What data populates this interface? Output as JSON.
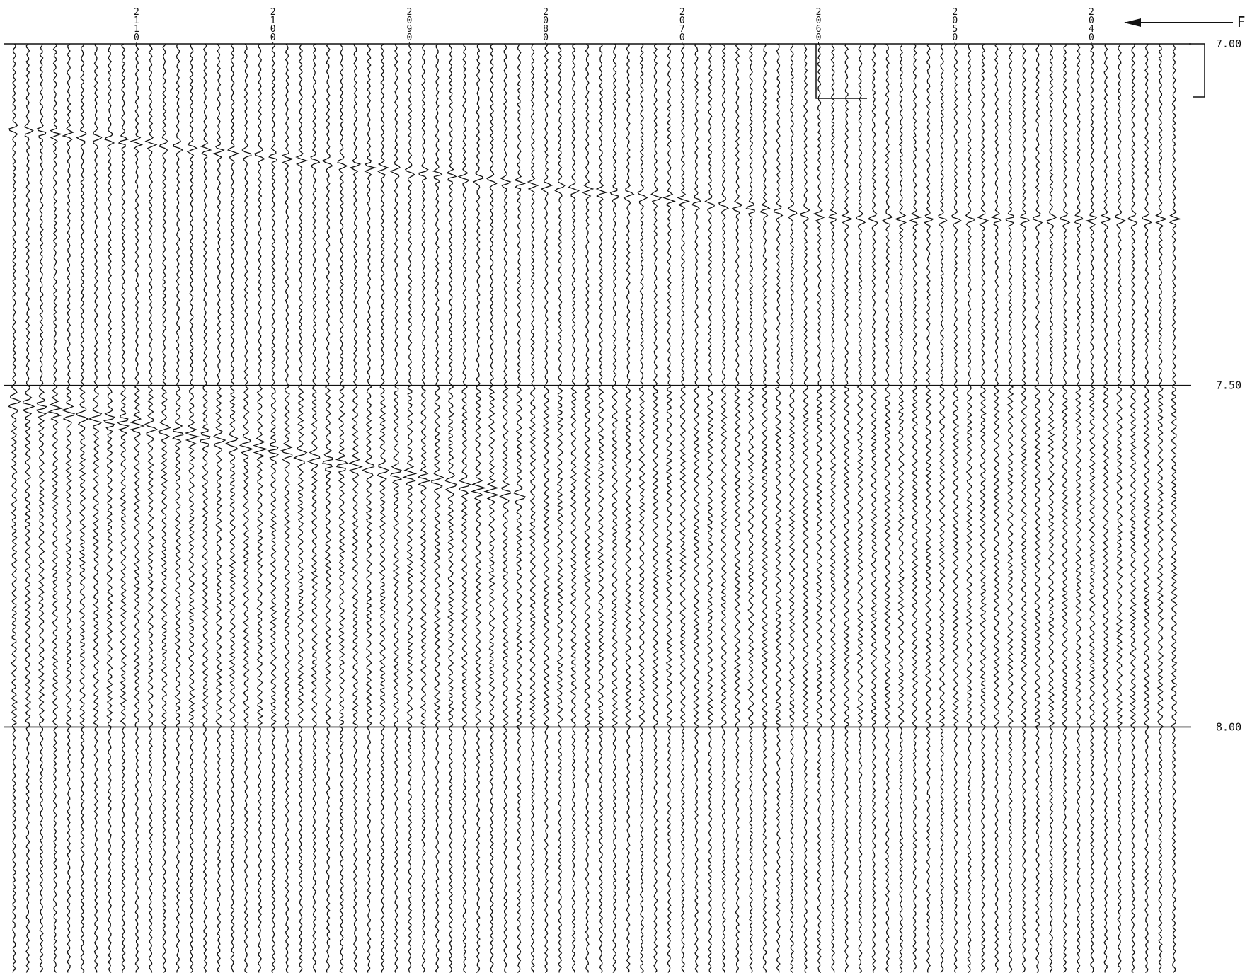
{
  "chart_data": {
    "type": "seismic",
    "annotation": "F",
    "xticks": [
      2110,
      2100,
      2090,
      2080,
      2070,
      2060,
      2050,
      2040
    ],
    "xlim": [
      2119.7,
      2033.2
    ],
    "yticks": [
      {
        "value": 7,
        "label": "7.00"
      },
      {
        "value": 7.5,
        "label": "7.50"
      },
      {
        "value": 8,
        "label": "8.00"
      }
    ],
    "ylim": [
      7,
      8.36
    ],
    "grid": true
  }
}
